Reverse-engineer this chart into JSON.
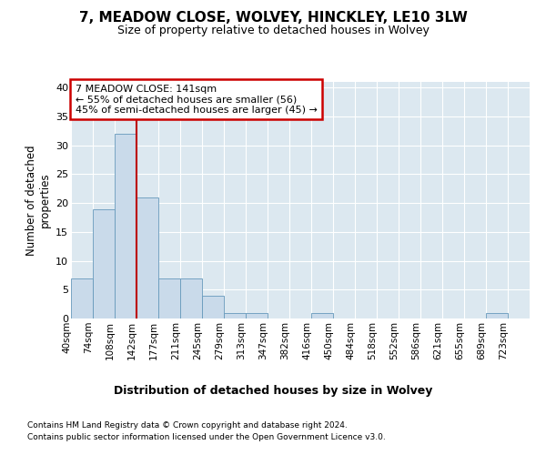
{
  "title1": "7, MEADOW CLOSE, WOLVEY, HINCKLEY, LE10 3LW",
  "title2": "Size of property relative to detached houses in Wolvey",
  "xlabel": "Distribution of detached houses by size in Wolvey",
  "ylabel": "Number of detached\nproperties",
  "footnote1": "Contains HM Land Registry data © Crown copyright and database right 2024.",
  "footnote2": "Contains public sector information licensed under the Open Government Licence v3.0.",
  "annotation_line1": "7 MEADOW CLOSE: 141sqm",
  "annotation_line2": "← 55% of detached houses are smaller (56)",
  "annotation_line3": "45% of semi-detached houses are larger (45) →",
  "bar_labels": [
    "40sqm",
    "74sqm",
    "108sqm",
    "142sqm",
    "177sqm",
    "211sqm",
    "245sqm",
    "279sqm",
    "313sqm",
    "347sqm",
    "382sqm",
    "416sqm",
    "450sqm",
    "484sqm",
    "518sqm",
    "552sqm",
    "586sqm",
    "621sqm",
    "655sqm",
    "689sqm",
    "723sqm"
  ],
  "bar_values": [
    7,
    19,
    32,
    21,
    7,
    7,
    4,
    1,
    1,
    0,
    0,
    1,
    0,
    0,
    0,
    0,
    0,
    0,
    0,
    1,
    0
  ],
  "bar_edges": [
    40,
    74,
    108,
    142,
    177,
    211,
    245,
    279,
    313,
    347,
    382,
    416,
    450,
    484,
    518,
    552,
    586,
    621,
    655,
    689,
    723,
    757
  ],
  "bar_color": "#c9daea",
  "bar_edge_color": "#6699bb",
  "vline_color": "#bb0000",
  "vline_x": 142,
  "fig_bg_color": "#ffffff",
  "plot_bg_color": "#dce8f0",
  "grid_color": "#ffffff",
  "annotation_box_facecolor": "#ffffff",
  "annotation_box_edgecolor": "#cc0000",
  "ylim": [
    0,
    41
  ],
  "yticks": [
    0,
    5,
    10,
    15,
    20,
    25,
    30,
    35,
    40
  ]
}
